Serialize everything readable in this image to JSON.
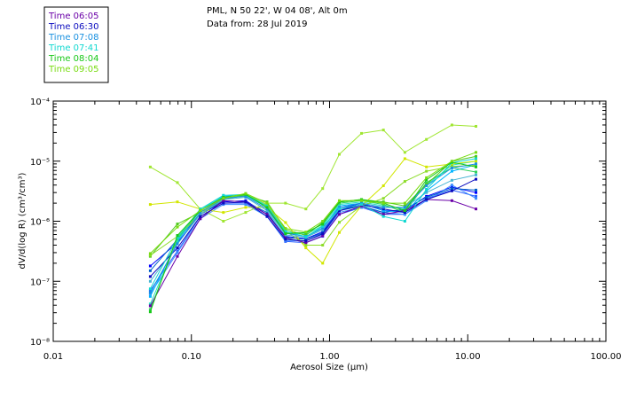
{
  "header": {
    "line1": "PML, N 50 22', W 04 08', Alt 0m",
    "line2": "Data from: 28 Jul 2019"
  },
  "chart_data": {
    "type": "line",
    "title": "PML, N 50 22', W 04 08', Alt 0m",
    "subtitle": "Data from: 28 Jul 2019",
    "xlabel": "Aerosol Size (μm)",
    "ylabel": "dV/d(log R) (cm³/cm³)",
    "xscale": "log",
    "yscale": "log",
    "xlim": [
      0.01,
      100
    ],
    "ylim": [
      1e-08,
      0.0001
    ],
    "xticks": [
      {
        "value": 0.01,
        "label": "0.01"
      },
      {
        "value": 0.1,
        "label": "0.10"
      },
      {
        "value": 1,
        "label": "1.00"
      },
      {
        "value": 10,
        "label": "10.00"
      },
      {
        "value": 100,
        "label": "100.00"
      }
    ],
    "yticks": [
      {
        "value": 1e-08,
        "label": "10⁻⁸"
      },
      {
        "value": 1e-07,
        "label": "10⁻⁷"
      },
      {
        "value": 1e-06,
        "label": "10⁻⁶"
      },
      {
        "value": 1e-05,
        "label": "10⁻⁵"
      },
      {
        "value": 0.0001,
        "label": "10⁻⁴"
      }
    ],
    "x": [
      0.0504,
      0.0792,
      0.1159,
      0.1704,
      0.2471,
      0.3527,
      0.48,
      0.6738,
      0.8913,
      1.1765,
      1.7029,
      2.4532,
      3.5085,
      5.0216,
      7.6831,
      11.466
    ],
    "legend_position": "top-left",
    "series": [
      {
        "name": "Time 06:05",
        "color": "#6a00a8",
        "values": [
          3.9e-08,
          2.6e-07,
          1.1e-06,
          2.2e-06,
          2.1e-06,
          1.3e-06,
          5.3e-07,
          4.4e-07,
          5.7e-07,
          1.3e-06,
          1.8e-06,
          1.3e-06,
          1.5e-06,
          2.3e-06,
          2.2e-06,
          1.6e-06
        ]
      },
      {
        "name": "Time 06:30",
        "color": "#0b0bbf",
        "values": [
          1.2e-07,
          3.6e-07,
          1.2e-06,
          2e-06,
          2.1e-06,
          1.2e-06,
          5e-07,
          4.7e-07,
          6.2e-07,
          1.5e-06,
          1.9e-06,
          1.6e-06,
          1.4e-06,
          2.3e-06,
          3.2e-06,
          5e-06
        ]
      },
      {
        "name": "Time 07:08",
        "color": "#1890e0",
        "values": [
          6.5e-08,
          4.2e-07,
          1.4e-06,
          2.4e-06,
          2.6e-06,
          1.6e-06,
          6.3e-07,
          5.6e-07,
          7.7e-07,
          1.7e-06,
          2e-06,
          1.7e-06,
          1.7e-06,
          3.9e-06,
          7.7e-06,
          9e-06
        ]
      },
      {
        "name": "Time 07:41",
        "color": "#10d8d0",
        "values": [
          7.5e-08,
          5.3e-07,
          1.6e-06,
          2.7e-06,
          2.8e-06,
          1.8e-06,
          6.8e-07,
          5.5e-07,
          8.2e-07,
          1.6e-06,
          1.9e-06,
          1.2e-06,
          1e-06,
          3.4e-06,
          9.4e-06,
          1.1e-05
        ]
      },
      {
        "name": "Time 08:04",
        "color": "#18c818",
        "values": [
          3.1e-08,
          5.8e-07,
          1.5e-06,
          2.5e-06,
          2.8e-06,
          1.7e-06,
          6.2e-07,
          6.5e-07,
          8.9e-07,
          2.1e-06,
          2.3e-06,
          2e-06,
          1.5e-06,
          4.9e-06,
          9.6e-06,
          8e-06
        ]
      },
      {
        "name": "Time 09:05",
        "color": "#78dc10",
        "values": [
          2.9e-07,
          8e-07,
          1.5e-06,
          2.4e-06,
          2.9e-06,
          2e-06,
          7.6e-07,
          6.6e-07,
          1e-06,
          2.2e-06,
          2.2e-06,
          2e-06,
          2e-06,
          5.3e-06,
          1e-05,
          1.4e-05
        ]
      }
    ],
    "extra_unlabeled_series": [
      {
        "color": "#0000ff",
        "values": [
          1.8e-07,
          4.4e-07,
          1.3e-06,
          2.1e-06,
          2.2e-06,
          1.3e-06,
          5.6e-07,
          5.1e-07,
          6.7e-07,
          1.6e-06,
          2e-06,
          1.5e-06,
          1.5e-06,
          2.6e-06,
          3.7e-06,
          3e-06
        ]
      },
      {
        "color": "#2a60ff",
        "values": [
          7e-08,
          3.2e-07,
          1.2e-06,
          2e-06,
          2e-06,
          1.2e-06,
          4.6e-07,
          4.4e-07,
          5.6e-07,
          1.3e-06,
          1.7e-06,
          1.3e-06,
          1.3e-06,
          2.4e-06,
          3.3e-06,
          2.6e-06
        ]
      },
      {
        "color": "#3c8cff",
        "values": [
          6.2e-08,
          3e-07,
          1.1e-06,
          1.9e-06,
          1.9e-06,
          1.2e-06,
          4.8e-07,
          4.7e-07,
          6e-07,
          1.4e-06,
          1.7e-06,
          1.4e-06,
          1.3e-06,
          2.2e-06,
          4e-06,
          2.4e-06
        ]
      },
      {
        "color": "#0060c8",
        "values": [
          1.5e-07,
          5e-07,
          1.3e-06,
          2.2e-06,
          2.1e-06,
          1.4e-06,
          5.4e-07,
          5e-07,
          6.4e-07,
          1.5e-06,
          1.8e-06,
          1.4e-06,
          1.6e-06,
          2.5e-06,
          3.5e-06,
          3.3e-06
        ]
      },
      {
        "color": "#00b4ff",
        "values": [
          5.6e-08,
          4.6e-07,
          1.5e-06,
          2.6e-06,
          2.7e-06,
          1.7e-06,
          6.4e-07,
          5.6e-07,
          7.6e-07,
          1.8e-06,
          2e-06,
          1.5e-06,
          1.4e-06,
          3.2e-06,
          6.8e-06,
          8.7e-06
        ]
      },
      {
        "color": "#28e0c0",
        "values": [
          4.2e-08,
          4.8e-07,
          1.6e-06,
          2.5e-06,
          2.7e-06,
          1.8e-06,
          6.5e-07,
          6e-07,
          8.4e-07,
          1.9e-06,
          2.1e-06,
          1.8e-06,
          1.6e-06,
          4e-06,
          8.6e-06,
          1e-05
        ]
      },
      {
        "color": "#30d25a",
        "values": [
          3.4e-08,
          5.1e-07,
          1.5e-06,
          2.4e-06,
          2.8e-06,
          1.8e-06,
          6.6e-07,
          6.3e-07,
          9.2e-07,
          2e-06,
          2.2e-06,
          1.9e-06,
          1.4e-06,
          4.4e-06,
          7.8e-06,
          6.6e-06
        ]
      },
      {
        "color": "#50c81e",
        "values": [
          2.6e-07,
          9e-07,
          1.4e-06,
          2.3e-06,
          2.7e-06,
          2.1e-06,
          7.3e-07,
          5.8e-07,
          9.6e-07,
          2.1e-06,
          2.3e-06,
          2.1e-06,
          1.8e-06,
          4.1e-06,
          9.9e-06,
          1.2e-05
        ]
      },
      {
        "color": "#a0e632",
        "values": [
          8e-06,
          4.4e-06,
          1.6e-06,
          1e-06,
          1.4e-06,
          2e-06,
          2e-06,
          1.6e-06,
          3.5e-06,
          1.3e-05,
          2.9e-05,
          3.3e-05,
          1.4e-05,
          2.3e-05,
          4e-05,
          3.8e-05
        ]
      },
      {
        "color": "#d2e600",
        "values": [
          1.9e-06,
          2.1e-06,
          1.6e-06,
          1.4e-06,
          1.7e-06,
          1.7e-06,
          9.5e-07,
          3.6e-07,
          2e-07,
          6.5e-07,
          1.8e-06,
          3.9e-06,
          1.1e-05,
          8e-06,
          9e-06,
          1e-05
        ]
      },
      {
        "color": "#8cdc28",
        "values": [
          2.7e-07,
          5.6e-07,
          1.3e-06,
          2.5e-06,
          2.8e-06,
          1.9e-06,
          6.9e-07,
          4e-07,
          4e-07,
          9.6e-07,
          1.8e-06,
          2.4e-06,
          4.6e-06,
          6.8e-06,
          8.2e-06,
          8.5e-06
        ]
      },
      {
        "color": "#46b4d2",
        "values": [
          1e-07,
          4.2e-07,
          1.3e-06,
          2.3e-06,
          2.5e-06,
          1.5e-06,
          5.9e-07,
          5.4e-07,
          7.2e-07,
          1.6e-06,
          1.8e-06,
          1.7e-06,
          1.7e-06,
          3e-06,
          4.8e-06,
          5.9e-06
        ]
      }
    ]
  }
}
